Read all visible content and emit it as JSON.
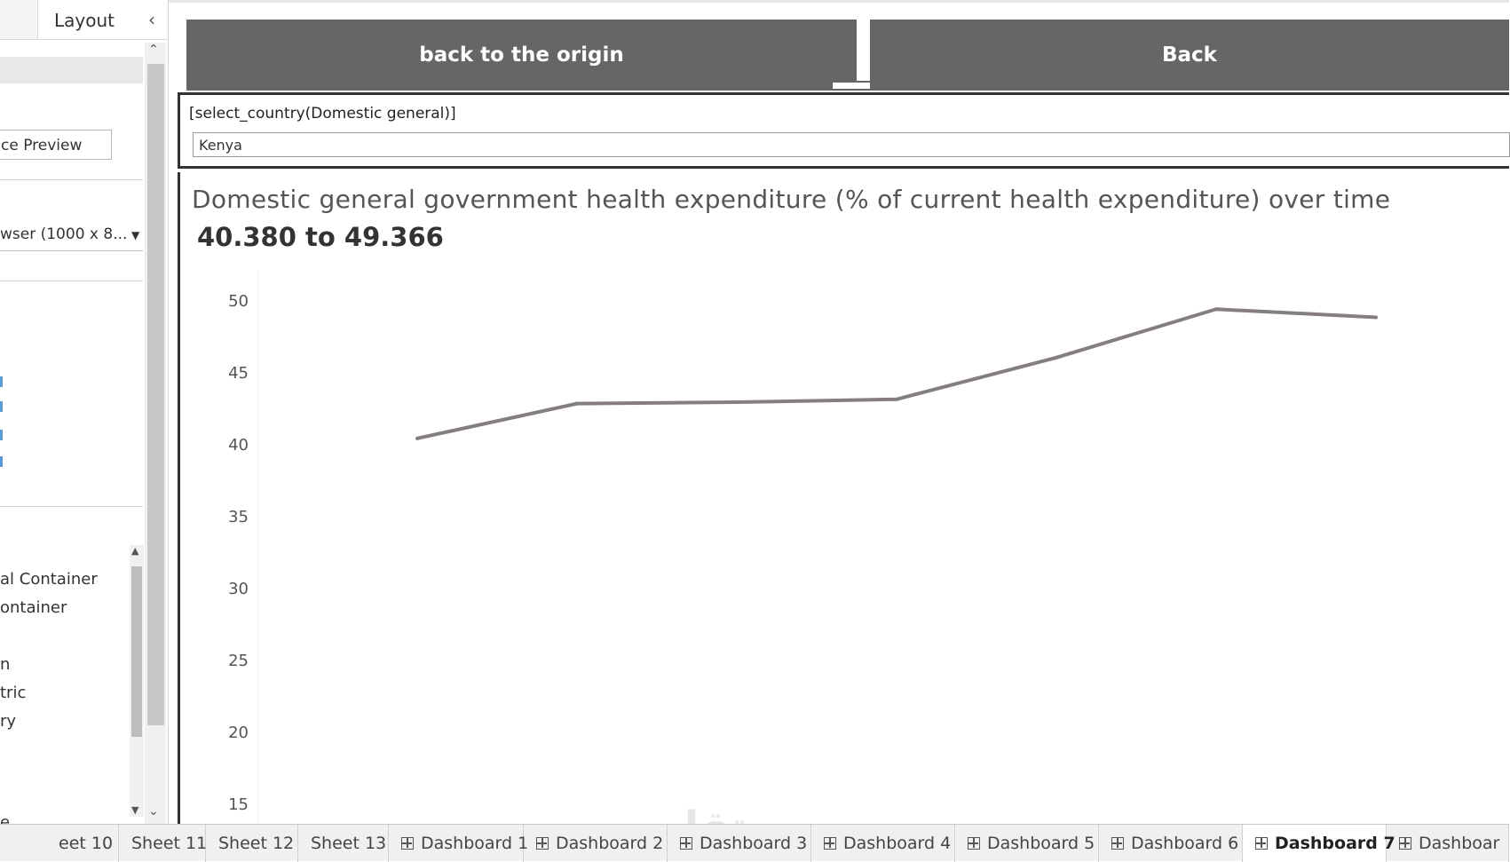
{
  "left_panel": {
    "tab_label": "Layout",
    "preview_button_label": "ce Preview",
    "size_dropdown_value": "wser (1000 x 8...",
    "tree_items": [
      "al Container",
      "ontainer",
      "n",
      "tric",
      "ry",
      "e"
    ]
  },
  "dashboard": {
    "buttons": {
      "origin_label": "back to the origin",
      "back_label": "Back"
    },
    "parameter": {
      "title": "[select_country(Domestic general)]",
      "value": "Kenya"
    }
  },
  "chart_data": {
    "type": "line",
    "title": "Domestic general government health expenditure (% of current health expenditure) over time",
    "subtitle": "40.380 to 49.366",
    "y_ticks": [
      "50",
      "45",
      "40",
      "35",
      "30",
      "25",
      "20",
      "15"
    ],
    "ylim": [
      15,
      50
    ],
    "series": [
      {
        "values": [
          40.38,
          42.8,
          42.9,
          43.1,
          46.0,
          49.366,
          48.8
        ]
      }
    ],
    "line_color": "#857e81",
    "grid": false
  },
  "tabs": [
    "eet 10",
    "Sheet 11",
    "Sheet 12",
    "Sheet 13",
    "Dashboard 1",
    "Dashboard 2",
    "Dashboard 3",
    "Dashboard 4",
    "Dashboard 5",
    "Dashboard 6",
    "Dashboard 7",
    "Dashboar"
  ],
  "active_tab": "Dashboard 7",
  "icons": {
    "collapse": "chevron-left-icon",
    "scroll_up": "arrow-up-icon",
    "scroll_down": "arrow-down-icon",
    "dashboard": "dashboard-grid-icon"
  }
}
